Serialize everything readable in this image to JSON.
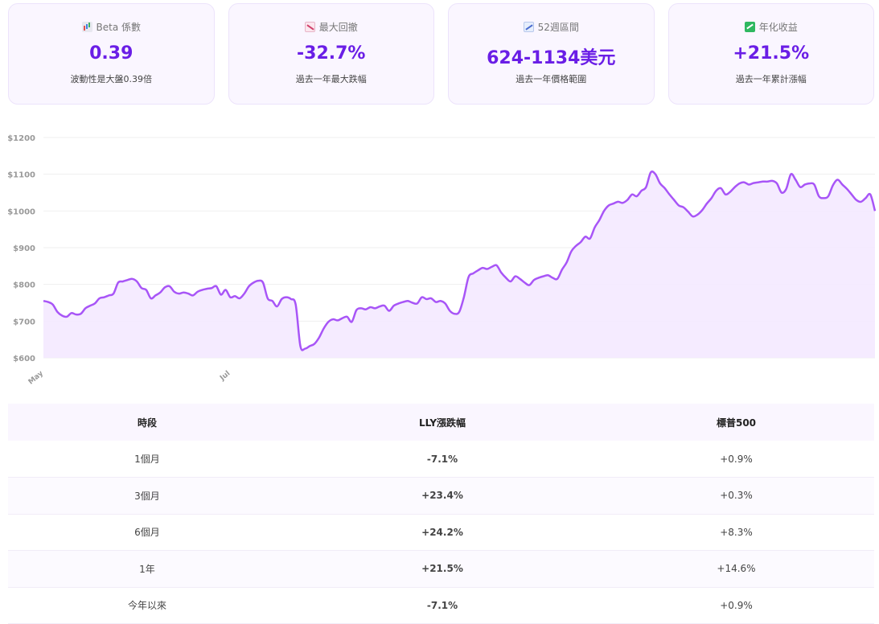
{
  "cards": [
    {
      "icon": "bar-chart-icon",
      "label": "Beta 係數",
      "value": "0.39",
      "desc": "波動性是大盤0.39倍"
    },
    {
      "icon": "chart-decreasing-icon",
      "label": "最大回撤",
      "value": "-32.7%",
      "desc": "過去一年最大跌幅"
    },
    {
      "icon": "chart-increasing-icon",
      "label": "52週區間",
      "value": "624-1134美元",
      "desc": "過去一年價格範圍"
    },
    {
      "icon": "chart-up-green-icon",
      "label": "年化收益",
      "value": "+21.5%",
      "desc": "過去一年累計漲幅"
    }
  ],
  "colors": {
    "accent": "#6a1ee6",
    "line": "#a855f7",
    "area": "#f3e8ff",
    "positive": "#18b85a",
    "negative": "#e83a30"
  },
  "chart_data": {
    "type": "area",
    "y_tick_labels": [
      "$600",
      "$700",
      "$800",
      "$900",
      "$1000",
      "$1100",
      "$1200"
    ],
    "y_ticks": [
      600,
      700,
      800,
      900,
      1000,
      1100,
      1200
    ],
    "ylim": [
      600,
      1200
    ],
    "x_tick_labels": [
      {
        "label": "May",
        "index": 0
      },
      {
        "label": "Jul",
        "index": 40
      }
    ],
    "grid": true,
    "values": [
      755,
      752,
      745,
      725,
      715,
      712,
      722,
      718,
      720,
      735,
      742,
      748,
      762,
      765,
      770,
      775,
      805,
      808,
      812,
      815,
      808,
      790,
      785,
      762,
      770,
      778,
      792,
      795,
      780,
      775,
      778,
      775,
      770,
      780,
      785,
      788,
      790,
      795,
      772,
      785,
      765,
      768,
      762,
      775,
      795,
      805,
      810,
      805,
      762,
      755,
      740,
      760,
      765,
      760,
      745,
      632,
      625,
      632,
      638,
      655,
      680,
      698,
      705,
      702,
      708,
      712,
      698,
      730,
      735,
      732,
      738,
      735,
      740,
      742,
      728,
      742,
      748,
      752,
      755,
      750,
      748,
      765,
      760,
      762,
      752,
      755,
      748,
      728,
      720,
      725,
      765,
      820,
      830,
      838,
      845,
      842,
      848,
      852,
      832,
      818,
      808,
      822,
      815,
      805,
      798,
      812,
      818,
      822,
      825,
      818,
      815,
      840,
      860,
      890,
      905,
      915,
      930,
      925,
      955,
      975,
      1000,
      1015,
      1020,
      1025,
      1022,
      1030,
      1045,
      1040,
      1055,
      1065,
      1105,
      1100,
      1075,
      1062,
      1045,
      1030,
      1015,
      1010,
      998,
      985,
      990,
      1002,
      1020,
      1035,
      1055,
      1062,
      1045,
      1052,
      1065,
      1075,
      1078,
      1072,
      1076,
      1078,
      1080,
      1080,
      1082,
      1075,
      1050,
      1060,
      1100,
      1085,
      1065,
      1072,
      1075,
      1072,
      1040,
      1035,
      1040,
      1070,
      1085,
      1072,
      1060,
      1045,
      1030,
      1025,
      1035,
      1045,
      1000
    ]
  },
  "table": {
    "headers": [
      "時段",
      "LLY漲跌幅",
      "標普500"
    ],
    "rows": [
      {
        "period": "1個月",
        "lly": "-7.1%",
        "lly_sign": "neg",
        "sp": "+0.9%"
      },
      {
        "period": "3個月",
        "lly": "+23.4%",
        "lly_sign": "pos",
        "sp": "+0.3%"
      },
      {
        "period": "6個月",
        "lly": "+24.2%",
        "lly_sign": "pos",
        "sp": "+8.3%"
      },
      {
        "period": "1年",
        "lly": "+21.5%",
        "lly_sign": "pos",
        "sp": "+14.6%"
      },
      {
        "period": "今年以來",
        "lly": "-7.1%",
        "lly_sign": "neg",
        "sp": "+0.9%"
      }
    ]
  }
}
